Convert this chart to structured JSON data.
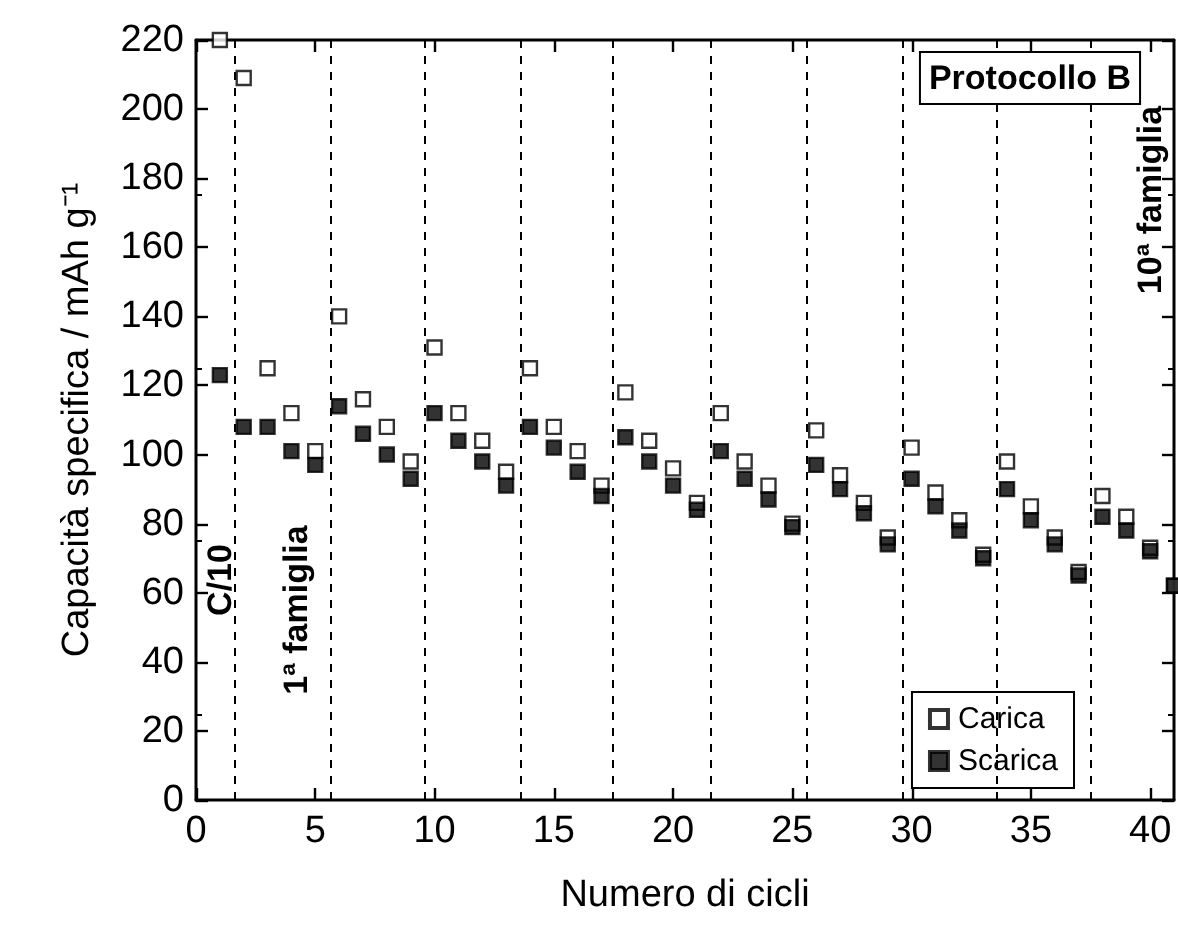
{
  "chart_data": {
    "type": "scatter",
    "xlabel": "Numero di cicli",
    "ylabel": "Capacità specifica / mAh g⁻¹",
    "x": [
      1,
      2,
      3,
      4,
      5,
      6,
      7,
      8,
      9,
      10,
      11,
      12,
      13,
      14,
      15,
      16,
      17,
      18,
      19,
      20,
      21,
      22,
      23,
      24,
      25,
      26,
      27,
      28,
      29,
      30,
      31,
      32,
      33,
      34,
      35,
      36,
      37,
      38,
      39,
      40,
      41
    ],
    "series": [
      {
        "name": "Carica",
        "color": "#000000",
        "values": [
          220,
          209,
          125,
          112,
          101,
          140,
          116,
          108,
          98,
          131,
          112,
          104,
          95,
          125,
          108,
          101,
          91,
          118,
          104,
          96,
          86,
          112,
          98,
          91,
          80,
          107,
          94,
          86,
          76,
          102,
          89,
          81,
          71,
          98,
          85,
          76,
          66,
          88,
          82,
          73,
          62
        ]
      },
      {
        "name": "Scarica",
        "color": "#000000",
        "values": [
          123,
          108,
          108,
          101,
          97,
          114,
          106,
          100,
          93,
          112,
          104,
          98,
          91,
          108,
          102,
          95,
          88,
          105,
          98,
          91,
          84,
          101,
          93,
          87,
          79,
          97,
          90,
          83,
          74,
          93,
          85,
          78,
          70,
          90,
          81,
          74,
          65,
          82,
          78,
          72,
          62
        ]
      }
    ],
    "xlim": [
      0,
      41
    ],
    "xticks": [
      0,
      5,
      10,
      15,
      20,
      25,
      30,
      35,
      40
    ],
    "ylim": [
      0,
      220
    ],
    "yticks": [
      0,
      20,
      40,
      60,
      80,
      100,
      120,
      140,
      160,
      180,
      200,
      220
    ],
    "marker": "square",
    "grid": false,
    "legend": "bottom right",
    "ref_lines": [
      {
        "axis": "x",
        "value": 1.6,
        "line_style": "dashed",
        "color": "#000000"
      },
      {
        "axis": "x",
        "value": 5.6,
        "line_style": "dashed",
        "color": "#000000"
      },
      {
        "axis": "x",
        "value": 9.6,
        "line_style": "dashed",
        "color": "#000000"
      },
      {
        "axis": "x",
        "value": 13.6,
        "line_style": "dashed",
        "color": "#000000"
      },
      {
        "axis": "x",
        "value": 17.5,
        "line_style": "dashed",
        "color": "#000000"
      },
      {
        "axis": "x",
        "value": 21.6,
        "line_style": "dashed",
        "color": "#000000"
      },
      {
        "axis": "x",
        "value": 25.6,
        "line_style": "dashed",
        "color": "#000000"
      },
      {
        "axis": "x",
        "value": 29.6,
        "line_style": "dashed",
        "color": "#000000"
      },
      {
        "axis": "x",
        "value": 33.6,
        "line_style": "dashed",
        "color": "#000000"
      },
      {
        "axis": "x",
        "value": 37.5,
        "line_style": "dashed",
        "color": "#000000"
      }
    ],
    "annotations": [
      "Protocollo B",
      "C/10",
      "1ª famiglia",
      "10ª famiglia"
    ]
  }
}
